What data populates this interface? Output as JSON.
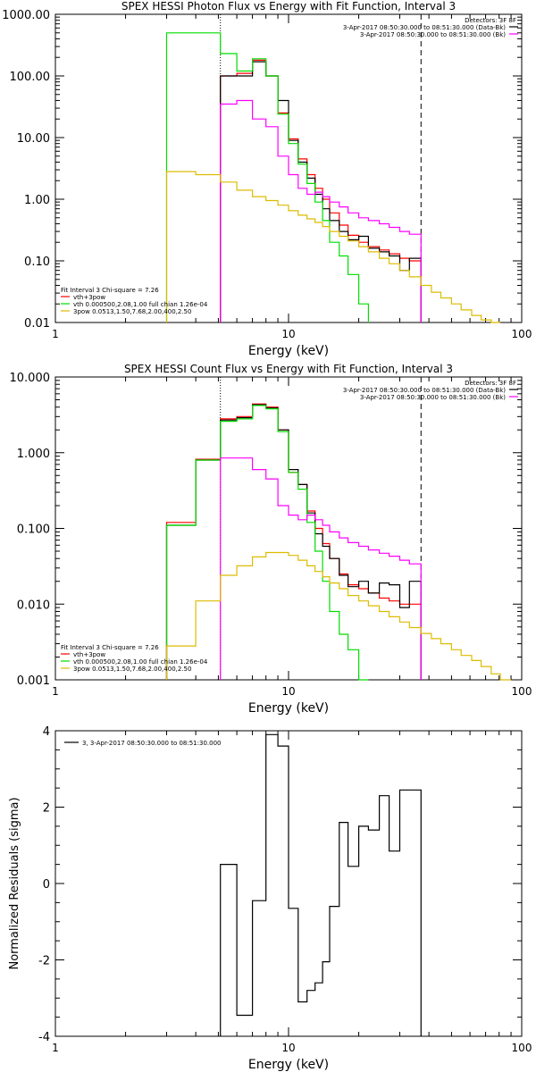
{
  "chart_data": [
    {
      "type": "line",
      "title": "SPEX HESSI Photon Flux vs Energy with Fit Function, Interval 3",
      "xlabel": "Energy (keV)",
      "ylabel": "",
      "xscale": "log",
      "yscale": "log",
      "xlim": [
        1,
        100
      ],
      "ylim": [
        0.01,
        1000
      ],
      "grid": false,
      "x_ticks": [
        "1",
        "10",
        "100"
      ],
      "y_ticks": [
        "0.01",
        "0.10",
        "1.00",
        "10.00",
        "100.00",
        "1000.00"
      ],
      "legend_top": {
        "header": "Detectors: 3F 8F",
        "entries": [
          {
            "label": "3-Apr-2017 08:50:30.000 to 08:51:30.000 (Data-Bk)",
            "color": "#000000"
          },
          {
            "label": "3-Apr-2017 08:50:30.000 to 08:51:30.000 (Bk)",
            "color": "#ff00ff"
          }
        ]
      },
      "legend_bottom": {
        "header": "Fit Interval 3   Chi-square = 7.26",
        "entries": [
          {
            "label": "vth+3pow",
            "color": "#ff0000"
          },
          {
            "label": "vth 0.000500,2.08,1.00  full chian 1.26e-04",
            "color": "#00dd00"
          },
          {
            "label": "3pow 0.0513,1.50,7.68,2.00,400,2.50",
            "color": "#ddbb00"
          }
        ]
      },
      "vlines": [
        {
          "x": 5.1,
          "style": "dotted",
          "color": "#000000"
        },
        {
          "x": 37,
          "style": "dashed",
          "color": "#000000"
        }
      ],
      "series": [
        {
          "name": "vth+3pow",
          "color": "#ff0000",
          "edges": [
            5.1,
            6.0,
            7.0,
            8.0,
            9.0,
            10.0,
            11.0,
            12.0,
            13.0,
            14.0,
            15.0,
            16.5,
            18.0,
            20.0,
            22.0,
            24.5,
            27.0,
            30.0,
            33.0,
            37.0
          ],
          "values": [
            100,
            110,
            180,
            100,
            25,
            9.5,
            4.5,
            2.5,
            1.5,
            1.0,
            0.6,
            0.38,
            0.26,
            0.2,
            0.17,
            0.15,
            0.13,
            0.11,
            0.1
          ]
        },
        {
          "name": "Data-Bk",
          "color": "#000000",
          "edges": [
            5.1,
            6.0,
            7.0,
            8.0,
            9.0,
            10.0,
            11.0,
            12.0,
            13.0,
            14.0,
            15.0,
            16.5,
            18.0,
            20.0,
            22.0,
            24.5,
            27.0,
            30.0,
            33.0,
            37.0
          ],
          "values": [
            100,
            100,
            170,
            100,
            40,
            9,
            4,
            2.2,
            1.2,
            0.7,
            0.45,
            0.3,
            0.22,
            0.25,
            0.16,
            0.14,
            0.12,
            0.07,
            0.11
          ]
        },
        {
          "name": "vth",
          "color": "#00dd00",
          "edges": [
            3.0,
            4.0,
            5.1,
            6.0,
            7.0,
            8.0,
            9.0,
            10.0,
            11.0,
            12.0,
            13.0,
            14.0,
            15.0,
            16.5,
            18.0,
            20.0,
            22.0
          ],
          "values": [
            500,
            500,
            230,
            120,
            190,
            100,
            24,
            8,
            3.7,
            1.8,
            0.9,
            0.45,
            0.2,
            0.12,
            0.06,
            0.02
          ]
        },
        {
          "name": "Bk",
          "color": "#ff00ff",
          "edges": [
            5.1,
            6.0,
            7.0,
            8.0,
            9.0,
            10.0,
            11.0,
            12.0,
            13.0,
            14.0,
            15.0,
            16.5,
            18.0,
            20.0,
            22.0,
            24.5,
            27.0,
            30.0,
            33.0,
            37.0
          ],
          "values": [
            35,
            40,
            20,
            15,
            5,
            2.5,
            1.5,
            1.2,
            1.3,
            1.1,
            0.9,
            0.75,
            0.6,
            0.5,
            0.45,
            0.4,
            0.35,
            0.3,
            0.27
          ]
        },
        {
          "name": "3pow",
          "color": "#ddbb00",
          "edges": [
            3.0,
            4.0,
            5.1,
            6.0,
            7.0,
            8.0,
            9.0,
            10.0,
            11.0,
            12.0,
            13.0,
            14.0,
            15.0,
            16.5,
            18.0,
            20.0,
            22.0,
            24.5,
            27.0,
            30.0,
            33.0,
            37.0,
            41.0,
            45.0,
            50.0,
            55.0,
            61.0,
            67.0,
            74.0,
            81.0
          ],
          "values": [
            2.8,
            2.5,
            1.9,
            1.4,
            1.1,
            0.95,
            0.8,
            0.65,
            0.55,
            0.48,
            0.42,
            0.36,
            0.3,
            0.25,
            0.21,
            0.17,
            0.14,
            0.11,
            0.09,
            0.07,
            0.055,
            0.04,
            0.031,
            0.025,
            0.02,
            0.016,
            0.013,
            0.011,
            0.01
          ]
        }
      ]
    },
    {
      "type": "line",
      "title": "SPEX HESSI Count Flux vs Energy with Fit Function, Interval 3",
      "xlabel": "Energy (keV)",
      "ylabel": "",
      "xscale": "log",
      "yscale": "log",
      "xlim": [
        1,
        100
      ],
      "ylim": [
        0.001,
        10
      ],
      "grid": false,
      "x_ticks": [
        "1",
        "10",
        "100"
      ],
      "y_ticks": [
        "0.001",
        "0.010",
        "0.100",
        "1.000",
        "10.000"
      ],
      "legend_top": {
        "header": "Detectors: 3F 8F",
        "entries": [
          {
            "label": "3-Apr-2017 08:50:30.000 to 08:51:30.000 (Data-Bk)",
            "color": "#000000"
          },
          {
            "label": "3-Apr-2017 08:50:30.000 to 08:51:30.000 (Bk)",
            "color": "#ff00ff"
          }
        ]
      },
      "legend_bottom": {
        "header": "Fit Interval 3   Chi-square = 7.26",
        "entries": [
          {
            "label": "vth+3pow",
            "color": "#ff0000"
          },
          {
            "label": "vth 0.000500,2.08,1.00  full chian 1.26e-04",
            "color": "#00dd00"
          },
          {
            "label": "3pow 0.0513,1.50,7.68,2.00,400,2.50",
            "color": "#ddbb00"
          }
        ]
      },
      "vlines": [
        {
          "x": 5.1,
          "style": "dotted",
          "color": "#000000"
        },
        {
          "x": 37,
          "style": "dashed",
          "color": "#000000"
        }
      ],
      "series": [
        {
          "name": "vth+3pow",
          "color": "#ff0000",
          "edges": [
            3.0,
            4.0,
            5.1,
            6.0,
            7.0,
            8.0,
            9.0,
            10.0,
            11.0,
            12.0,
            13.0,
            14.0,
            15.0,
            16.5,
            18.0,
            20.0,
            22.0,
            24.5,
            27.0,
            30.0,
            33.0,
            37.0
          ],
          "values": [
            0.12,
            0.82,
            2.8,
            3.0,
            4.4,
            4.0,
            2.0,
            0.55,
            0.38,
            0.17,
            0.1,
            0.063,
            0.04,
            0.025,
            0.018,
            0.016,
            0.014,
            0.012,
            0.011,
            0.01,
            0.01
          ]
        },
        {
          "name": "Data-Bk",
          "color": "#000000",
          "edges": [
            3.0,
            4.0,
            5.1,
            6.0,
            7.0,
            8.0,
            9.0,
            10.0,
            11.0,
            12.0,
            13.0,
            14.0,
            15.0,
            16.5,
            18.0,
            20.0,
            22.0,
            24.5,
            27.0,
            30.0,
            33.0,
            37.0
          ],
          "values": [
            0.11,
            0.8,
            2.7,
            2.9,
            4.3,
            3.9,
            2.0,
            0.6,
            0.38,
            0.16,
            0.085,
            0.058,
            0.04,
            0.024,
            0.017,
            0.02,
            0.014,
            0.019,
            0.018,
            0.009,
            0.02
          ]
        },
        {
          "name": "vth",
          "color": "#00dd00",
          "edges": [
            3.0,
            4.0,
            5.1,
            6.0,
            7.0,
            8.0,
            9.0,
            10.0,
            11.0,
            12.0,
            13.0,
            14.0,
            15.0,
            16.5,
            18.0,
            20.0,
            22.0
          ],
          "values": [
            0.11,
            0.8,
            2.6,
            2.8,
            4.2,
            3.8,
            1.9,
            0.55,
            0.33,
            0.12,
            0.05,
            0.02,
            0.008,
            0.004,
            0.0025,
            0.001
          ]
        },
        {
          "name": "Bk",
          "color": "#ff00ff",
          "edges": [
            5.1,
            6.0,
            7.0,
            8.0,
            9.0,
            10.0,
            11.0,
            12.0,
            13.0,
            14.0,
            15.0,
            16.5,
            18.0,
            20.0,
            22.0,
            24.5,
            27.0,
            30.0,
            33.0,
            37.0
          ],
          "values": [
            0.85,
            0.85,
            0.6,
            0.45,
            0.2,
            0.15,
            0.13,
            0.15,
            0.13,
            0.11,
            0.09,
            0.075,
            0.065,
            0.058,
            0.052,
            0.047,
            0.043,
            0.038,
            0.034
          ]
        },
        {
          "name": "3pow",
          "color": "#ddbb00",
          "edges": [
            3.0,
            4.0,
            5.1,
            6.0,
            7.0,
            8.0,
            9.0,
            10.0,
            11.0,
            12.0,
            13.0,
            14.0,
            15.0,
            16.5,
            18.0,
            20.0,
            22.0,
            24.5,
            27.0,
            30.0,
            33.0,
            37.0,
            41.0,
            45.0,
            50.0,
            55.0,
            61.0,
            67.0,
            74.0,
            81.0,
            90.0
          ],
          "values": [
            0.0028,
            0.011,
            0.024,
            0.032,
            0.042,
            0.048,
            0.048,
            0.044,
            0.038,
            0.032,
            0.027,
            0.023,
            0.019,
            0.016,
            0.013,
            0.011,
            0.0095,
            0.008,
            0.0068,
            0.0058,
            0.0049,
            0.0041,
            0.0035,
            0.003,
            0.0025,
            0.0021,
            0.0018,
            0.0015,
            0.0012,
            0.001
          ]
        }
      ]
    },
    {
      "type": "line",
      "title": "",
      "xlabel": "Energy (keV)",
      "ylabel": "Normalized Residuals (sigma)",
      "xscale": "log",
      "yscale": "linear",
      "xlim": [
        1,
        100
      ],
      "ylim": [
        -4,
        4
      ],
      "grid": false,
      "x_ticks": [
        "1",
        "10",
        "100"
      ],
      "y_ticks": [
        "-4",
        "-2",
        "0",
        "2",
        "4"
      ],
      "legend_top": {
        "header": "",
        "entries": [
          {
            "label": "3,  3-Apr-2017 08:50:30.000 to 08:51:30.000",
            "color": "#000000"
          }
        ]
      },
      "series": [
        {
          "name": "3,  3-Apr-2017 08:50:30.000 to 08:51:30.000",
          "color": "#000000",
          "edges": [
            5.1,
            6.0,
            7.0,
            8.0,
            9.0,
            10.0,
            11.0,
            12.0,
            13.0,
            14.0,
            15.0,
            16.5,
            18.0,
            20.0,
            22.0,
            24.5,
            27.0,
            30.0,
            33.0,
            37.0
          ],
          "values": [
            0.5,
            -3.45,
            -0.45,
            3.9,
            3.6,
            -0.65,
            -3.1,
            -2.8,
            -2.6,
            -2.05,
            -0.6,
            1.6,
            0.45,
            1.5,
            1.4,
            2.3,
            0.85,
            2.45,
            2.45
          ],
          "baseline": -4
        }
      ]
    }
  ]
}
